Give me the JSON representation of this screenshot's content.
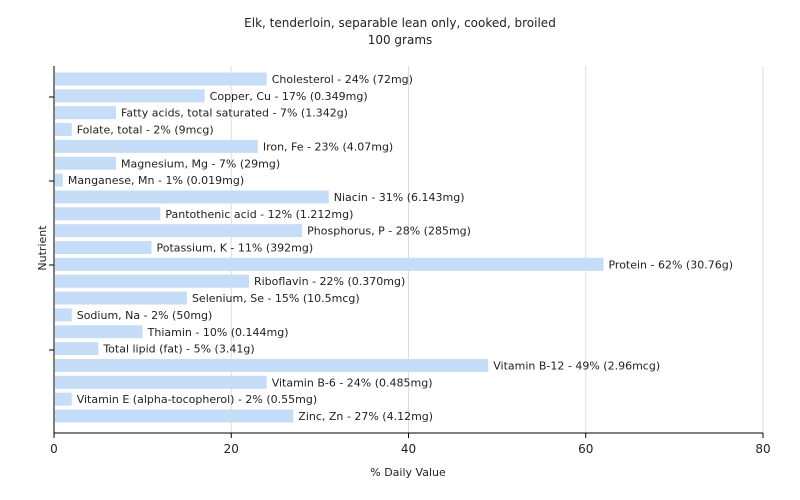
{
  "chart_data": {
    "type": "bar",
    "orientation": "horizontal",
    "title": "Elk, tenderloin, separable lean only, cooked, broiled",
    "subtitle": "100 grams",
    "xlabel": "% Daily Value",
    "ylabel": "Nutrient",
    "xlim": [
      0,
      80
    ],
    "xticks": [
      0,
      20,
      40,
      60,
      80
    ],
    "grid": true,
    "bar_color": "#c6ddf7",
    "categories": [
      "Cholesterol",
      "Copper, Cu",
      "Fatty acids, total saturated",
      "Folate, total",
      "Iron, Fe",
      "Magnesium, Mg",
      "Manganese, Mn",
      "Niacin",
      "Pantothenic acid",
      "Phosphorus, P",
      "Potassium, K",
      "Protein",
      "Riboflavin",
      "Selenium, Se",
      "Sodium, Na",
      "Thiamin",
      "Total lipid (fat)",
      "Vitamin B-12",
      "Vitamin B-6",
      "Vitamin E (alpha-tocopherol)",
      "Zinc, Zn"
    ],
    "values": [
      24,
      17,
      7,
      2,
      23,
      7,
      1,
      31,
      12,
      28,
      11,
      62,
      22,
      15,
      2,
      10,
      5,
      49,
      24,
      2,
      27
    ],
    "labels": [
      "Cholesterol - 24% (72mg)",
      "Copper, Cu - 17% (0.349mg)",
      "Fatty acids, total saturated - 7% (1.342g)",
      "Folate, total - 2% (9mcg)",
      "Iron, Fe - 23% (4.07mg)",
      "Magnesium, Mg - 7% (29mg)",
      "Manganese, Mn - 1% (0.019mg)",
      "Niacin - 31% (6.143mg)",
      "Pantothenic acid - 12% (1.212mg)",
      "Phosphorus, P - 28% (285mg)",
      "Potassium, K - 11% (392mg)",
      "Protein - 62% (30.76g)",
      "Riboflavin - 22% (0.370mg)",
      "Selenium, Se - 15% (10.5mcg)",
      "Sodium, Na - 2% (50mg)",
      "Thiamin - 10% (0.144mg)",
      "Total lipid (fat) - 5% (3.41g)",
      "Vitamin B-12 - 49% (2.96mcg)",
      "Vitamin B-6 - 24% (0.485mg)",
      "Vitamin E (alpha-tocopherol) - 2% (0.55mg)",
      "Zinc, Zn - 27% (4.12mg)"
    ]
  }
}
